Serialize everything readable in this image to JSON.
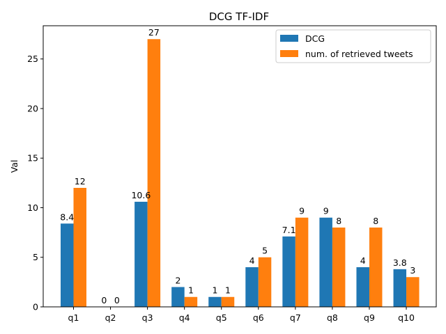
{
  "chart_data": {
    "type": "bar",
    "title": "DCG TF-IDF",
    "xlabel": "",
    "ylabel": "Val",
    "categories": [
      "q1",
      "q2",
      "q3",
      "q4",
      "q5",
      "q6",
      "q7",
      "q8",
      "q9",
      "q10"
    ],
    "series": [
      {
        "name": "DCG",
        "color": "#1f77b4",
        "values": [
          8.4,
          0,
          10.6,
          2,
          1,
          4,
          7.1,
          9,
          4,
          3.8
        ],
        "labels": [
          "8.4",
          "0",
          "10.6",
          "2",
          "1",
          "4",
          "7.1",
          "9",
          "4",
          "3.8"
        ]
      },
      {
        "name": "num. of retrieved tweets",
        "color": "#ff7f0e",
        "values": [
          12,
          0,
          27,
          1,
          1,
          5,
          9,
          8,
          8,
          3
        ],
        "labels": [
          "12",
          "0",
          "27",
          "1",
          "1",
          "5",
          "9",
          "8",
          "8",
          "3"
        ]
      }
    ],
    "ylim": [
      0,
      28.35
    ],
    "yticks": [
      0,
      5,
      10,
      15,
      20,
      25
    ],
    "ytick_labels": [
      "0",
      "5",
      "10",
      "15",
      "20",
      "25"
    ],
    "grid": false,
    "legend_position": "top-right"
  }
}
